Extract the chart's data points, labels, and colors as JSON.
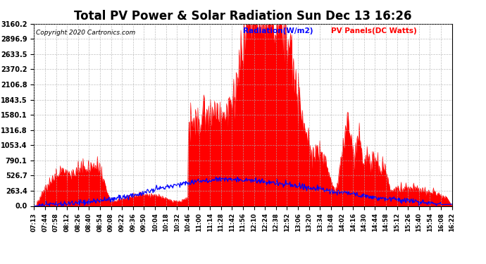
{
  "title": "Total PV Power & Solar Radiation Sun Dec 13 16:26",
  "copyright": "Copyright 2020 Cartronics.com",
  "legend_radiation": "Radiation(W/m2)",
  "legend_pv": "PV Panels(DC Watts)",
  "yticks": [
    0.0,
    263.4,
    526.7,
    790.1,
    1053.4,
    1316.8,
    1580.1,
    1843.5,
    2106.8,
    2370.2,
    2633.5,
    2896.9,
    3160.2
  ],
  "ymax": 3160.2,
  "xticks_labels": [
    "07:13",
    "07:44",
    "07:58",
    "08:12",
    "08:26",
    "08:40",
    "08:54",
    "09:08",
    "09:22",
    "09:36",
    "09:50",
    "10:04",
    "10:18",
    "10:32",
    "10:46",
    "11:00",
    "11:14",
    "11:28",
    "11:42",
    "11:56",
    "12:10",
    "12:24",
    "12:38",
    "12:52",
    "13:06",
    "13:20",
    "13:34",
    "13:48",
    "14:02",
    "14:16",
    "14:30",
    "14:44",
    "14:58",
    "15:12",
    "15:26",
    "15:40",
    "15:54",
    "16:08",
    "16:22"
  ],
  "background_color": "#ffffff",
  "grid_color": "#b0b0b0",
  "pv_color": "#ff0000",
  "radiation_color": "#0000ff",
  "title_fontsize": 12,
  "axis_fontsize": 7
}
